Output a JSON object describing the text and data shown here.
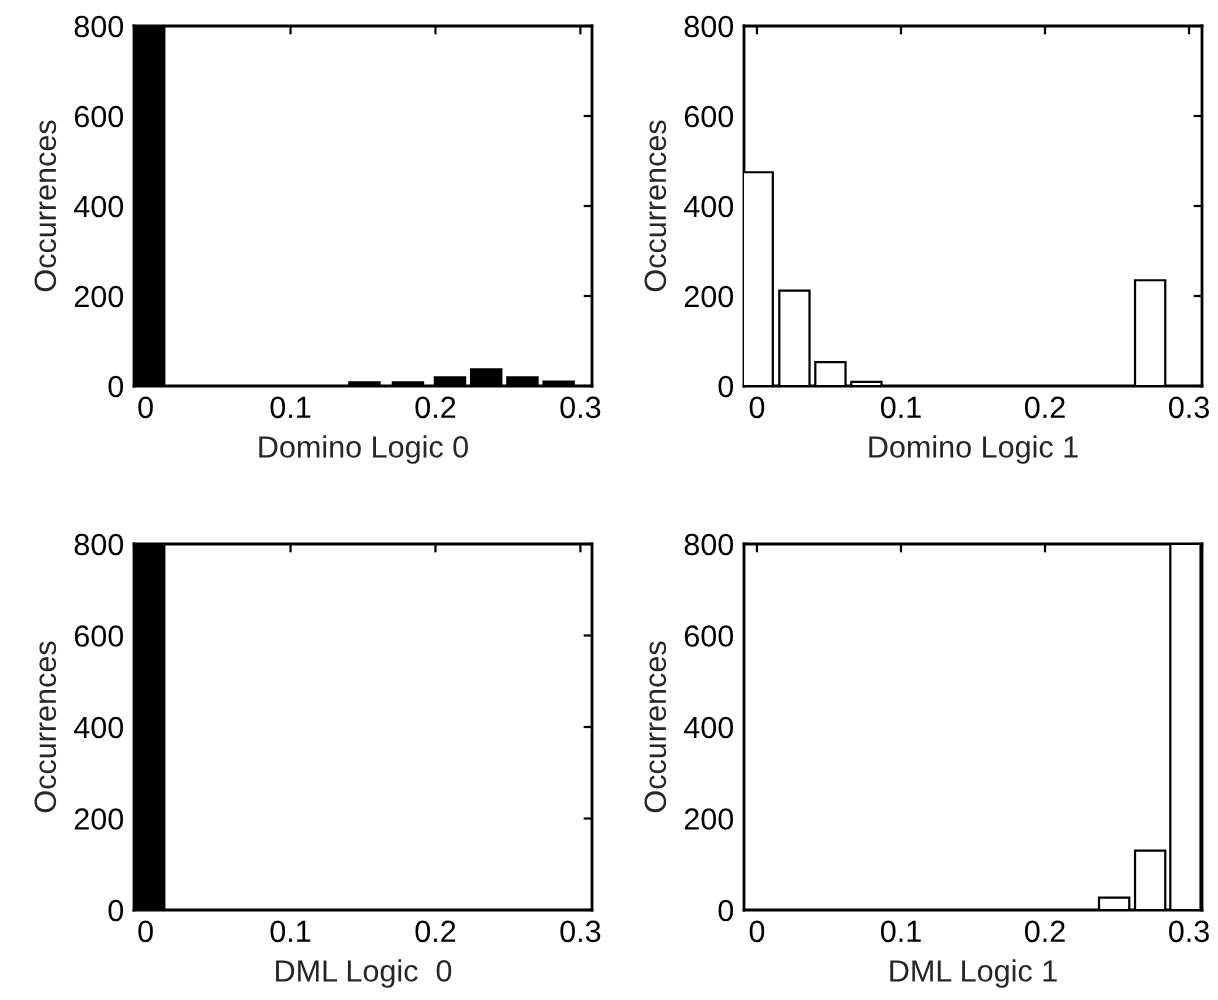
{
  "chart_data": [
    {
      "type": "bar",
      "xlabel": "Domino Logic 0",
      "ylabel": "Occurrences",
      "x": [
        0.0025,
        0.151,
        0.181,
        0.21,
        0.235,
        0.26,
        0.285
      ],
      "series": [
        {
          "color": "#000000",
          "values": [
            800,
            8,
            8,
            19,
            37,
            19,
            10
          ]
        }
      ],
      "xlim": [
        -0.008,
        0.308
      ],
      "ylim": [
        0,
        800
      ],
      "xticks": [
        0,
        0.1,
        0.2,
        0.3
      ],
      "yticks": [
        0,
        200,
        400,
        600,
        800
      ],
      "grid": false,
      "legend": false
    },
    {
      "type": "bar",
      "xlabel": "Domino Logic 1",
      "ylabel": "Occurrences",
      "x": [
        0.0005,
        0.026,
        0.051,
        0.076,
        0.273
      ],
      "series": [
        {
          "color": "#ffffff",
          "values": [
            475,
            212,
            53,
            9,
            235
          ]
        }
      ],
      "xlim": [
        -0.009,
        0.309
      ],
      "ylim": [
        0,
        800
      ],
      "xticks": [
        0,
        0.1,
        0.2,
        0.3
      ],
      "yticks": [
        0,
        200,
        400,
        600,
        800
      ],
      "grid": false,
      "legend": false
    },
    {
      "type": "bar",
      "xlabel": "DML Logic  0",
      "ylabel": "Occurrences",
      "x": [
        0.0025
      ],
      "series": [
        {
          "color": "#000000",
          "values": [
            800
          ]
        }
      ],
      "xlim": [
        -0.008,
        0.308
      ],
      "ylim": [
        0,
        800
      ],
      "xticks": [
        0,
        0.1,
        0.2,
        0.3
      ],
      "yticks": [
        0,
        200,
        400,
        600,
        800
      ],
      "grid": false,
      "legend": false
    },
    {
      "type": "bar",
      "xlabel": "DML Logic 1",
      "ylabel": "Occurrences",
      "x": [
        0.248,
        0.273,
        0.2975
      ],
      "series": [
        {
          "color": "#ffffff",
          "values": [
            27,
            130,
            800
          ]
        }
      ],
      "xlim": [
        -0.009,
        0.309
      ],
      "ylim": [
        0,
        800
      ],
      "xticks": [
        0,
        0.1,
        0.2,
        0.3
      ],
      "yticks": [
        0,
        200,
        400,
        600,
        800
      ],
      "grid": false,
      "legend": false
    }
  ]
}
